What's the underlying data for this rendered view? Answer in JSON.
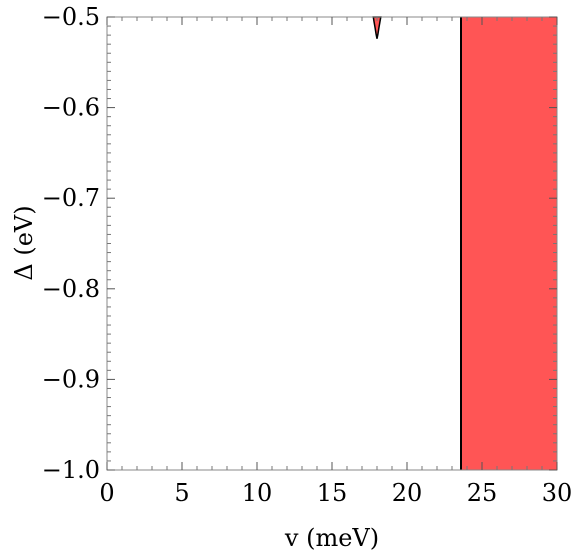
{
  "chart_data": {
    "type": "area",
    "title": "",
    "xlabel": "v (meV)",
    "ylabel": "Δ (eV)",
    "xlim": [
      0,
      30
    ],
    "ylim": [
      -1.0,
      -0.5
    ],
    "x_ticks": [
      0,
      5,
      10,
      15,
      20,
      25,
      30
    ],
    "x_tick_labels": [
      "0",
      "5",
      "10",
      "15",
      "20",
      "25",
      "30"
    ],
    "y_ticks": [
      -0.5,
      -0.6,
      -0.7,
      -0.8,
      -0.9,
      -1.0
    ],
    "y_tick_labels": [
      "−0.5",
      "−0.6",
      "−0.7",
      "−0.8",
      "−0.9",
      "−1.0"
    ],
    "grid": false,
    "legend": "none",
    "regions": [
      {
        "shape": "band",
        "x_range": [
          23.6,
          30
        ],
        "y_range": [
          -1.0,
          -0.5
        ],
        "fill": "#ff5555",
        "edge": "#000000"
      },
      {
        "shape": "small-lobe",
        "outline": [
          [
            17.75,
            -0.5
          ],
          [
            17.8,
            -0.505
          ],
          [
            17.87,
            -0.512
          ],
          [
            17.94,
            -0.519
          ],
          [
            18.0,
            -0.524
          ],
          [
            18.06,
            -0.519
          ],
          [
            18.13,
            -0.512
          ],
          [
            18.2,
            -0.505
          ],
          [
            18.25,
            -0.5
          ]
        ],
        "fill": "#ff5555",
        "edge": "#000000"
      }
    ]
  }
}
